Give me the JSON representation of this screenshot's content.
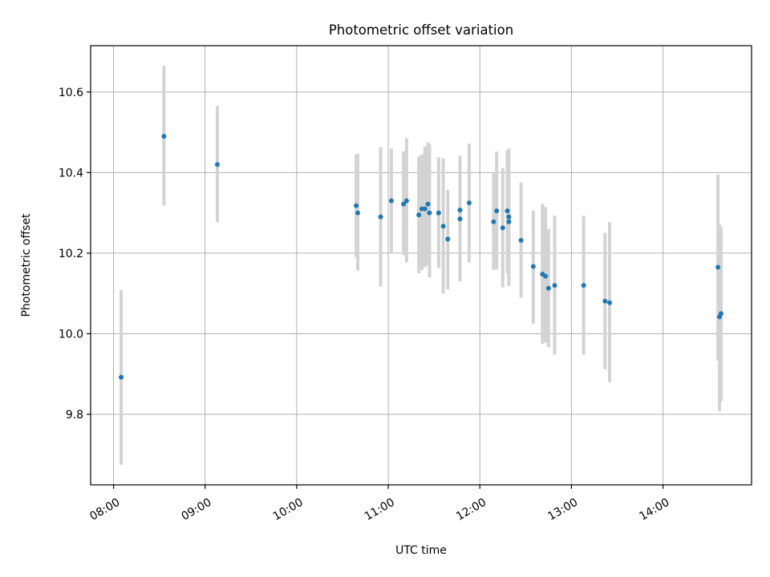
{
  "chart_data": {
    "type": "scatter",
    "title": "Photometric offset variation",
    "xlabel": "UTC time",
    "ylabel": "Photometric offset",
    "x_axis_type": "time",
    "xlim": [
      "07:45",
      "14:58"
    ],
    "ylim": [
      9.625,
      10.715
    ],
    "xticks": [
      "08:00",
      "09:00",
      "10:00",
      "11:00",
      "12:00",
      "13:00",
      "14:00"
    ],
    "yticks": [
      9.8,
      10.0,
      10.2,
      10.4,
      10.6
    ],
    "grid": true,
    "point_color": "#1f77b4",
    "errorbar_color": "#d3d3d3",
    "series": [
      {
        "points": [
          {
            "t": "08:05",
            "y": 9.892,
            "ylo": 9.675,
            "yhi": 10.108
          },
          {
            "t": "08:33",
            "y": 10.49,
            "ylo": 10.318,
            "yhi": 10.665
          },
          {
            "t": "09:08",
            "y": 10.42,
            "ylo": 10.277,
            "yhi": 10.565
          },
          {
            "t": "10:39",
            "y": 10.318,
            "ylo": 10.19,
            "yhi": 10.445
          },
          {
            "t": "10:40",
            "y": 10.3,
            "ylo": 10.157,
            "yhi": 10.447
          },
          {
            "t": "10:55",
            "y": 10.29,
            "ylo": 10.117,
            "yhi": 10.463
          },
          {
            "t": "11:02",
            "y": 10.33,
            "ylo": 10.2,
            "yhi": 10.46
          },
          {
            "t": "11:10",
            "y": 10.322,
            "ylo": 10.195,
            "yhi": 10.453
          },
          {
            "t": "11:12",
            "y": 10.33,
            "ylo": 10.177,
            "yhi": 10.485
          },
          {
            "t": "11:20",
            "y": 10.295,
            "ylo": 10.15,
            "yhi": 10.44
          },
          {
            "t": "11:22",
            "y": 10.31,
            "ylo": 10.158,
            "yhi": 10.445
          },
          {
            "t": "11:24",
            "y": 10.31,
            "ylo": 10.165,
            "yhi": 10.465
          },
          {
            "t": "11:26",
            "y": 10.322,
            "ylo": 10.17,
            "yhi": 10.475
          },
          {
            "t": "11:27",
            "y": 10.3,
            "ylo": 10.14,
            "yhi": 10.47
          },
          {
            "t": "11:33",
            "y": 10.3,
            "ylo": 10.163,
            "yhi": 10.438
          },
          {
            "t": "11:36",
            "y": 10.267,
            "ylo": 10.1,
            "yhi": 10.435
          },
          {
            "t": "11:39",
            "y": 10.235,
            "ylo": 10.11,
            "yhi": 10.357
          },
          {
            "t": "11:47",
            "y": 10.307,
            "ylo": 10.173,
            "yhi": 10.442
          },
          {
            "t": "11:47",
            "y": 10.285,
            "ylo": 10.13,
            "yhi": 10.44
          },
          {
            "t": "11:53",
            "y": 10.325,
            "ylo": 10.177,
            "yhi": 10.472
          },
          {
            "t": "12:09",
            "y": 10.278,
            "ylo": 10.158,
            "yhi": 10.398
          },
          {
            "t": "12:11",
            "y": 10.305,
            "ylo": 10.16,
            "yhi": 10.452
          },
          {
            "t": "12:15",
            "y": 10.263,
            "ylo": 10.115,
            "yhi": 10.412
          },
          {
            "t": "12:18",
            "y": 10.305,
            "ylo": 10.15,
            "yhi": 10.455
          },
          {
            "t": "12:19",
            "y": 10.29,
            "ylo": 10.12,
            "yhi": 10.46
          },
          {
            "t": "12:19",
            "y": 10.278,
            "ylo": 10.118,
            "yhi": 10.44
          },
          {
            "t": "12:27",
            "y": 10.232,
            "ylo": 10.09,
            "yhi": 10.375
          },
          {
            "t": "12:35",
            "y": 10.167,
            "ylo": 10.025,
            "yhi": 10.305
          },
          {
            "t": "12:41",
            "y": 10.148,
            "ylo": 9.975,
            "yhi": 10.322
          },
          {
            "t": "12:43",
            "y": 10.143,
            "ylo": 9.978,
            "yhi": 10.315
          },
          {
            "t": "12:45",
            "y": 10.113,
            "ylo": 9.967,
            "yhi": 10.26
          },
          {
            "t": "12:49",
            "y": 10.12,
            "ylo": 9.948,
            "yhi": 10.293
          },
          {
            "t": "13:08",
            "y": 10.12,
            "ylo": 9.948,
            "yhi": 10.293
          },
          {
            "t": "13:22",
            "y": 10.081,
            "ylo": 9.912,
            "yhi": 10.25
          },
          {
            "t": "13:25",
            "y": 10.077,
            "ylo": 9.88,
            "yhi": 10.277
          },
          {
            "t": "14:36",
            "y": 10.165,
            "ylo": 9.933,
            "yhi": 10.395
          },
          {
            "t": "14:37",
            "y": 10.042,
            "ylo": 9.808,
            "yhi": 10.272
          },
          {
            "t": "14:38",
            "y": 10.05,
            "ylo": 9.832,
            "yhi": 10.265
          }
        ]
      }
    ]
  }
}
